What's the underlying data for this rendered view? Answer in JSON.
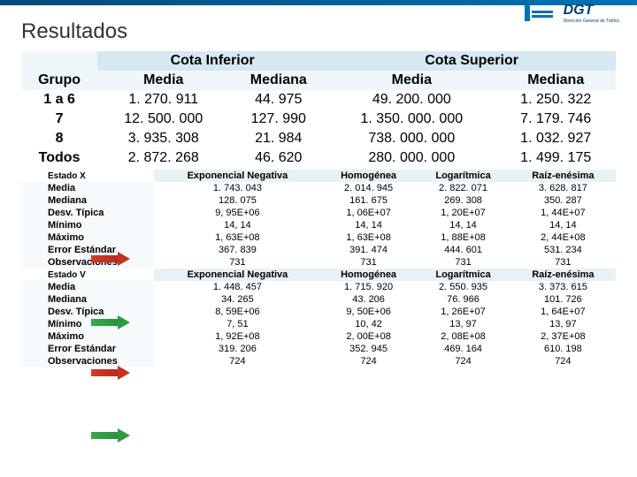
{
  "title": "Resultados",
  "logo_text": "DGT",
  "logo_sub": "Dirección General de Tráfico",
  "colors": {
    "topbar_from": "#014a7a",
    "topbar_to": "#0073b6",
    "hdr_bg": "#d6e9f2",
    "sub_bg": "#f0f7fb",
    "dist_hdr_bg": "#e8f1f6",
    "row_label_bg": "#f6fafc",
    "arrow_red": "#c33327",
    "arrow_green": "#2f9a40"
  },
  "tbl1": {
    "top1": "Cota Inferior",
    "top2": "Cota Superior",
    "h0": "Grupo",
    "h1": "Media",
    "h2": "Mediana",
    "h3": "Media",
    "h4": "Mediana",
    "rows": [
      {
        "g": "1 a 6",
        "a": "1. 270. 911",
        "b": "44. 975",
        "c": "49. 200. 000",
        "d": "1. 250. 322"
      },
      {
        "g": "7",
        "a": "12. 500. 000",
        "b": "127. 990",
        "c": "1. 350. 000. 000",
        "d": "7. 179. 746"
      },
      {
        "g": "8",
        "a": "3. 935. 308",
        "b": "21. 984",
        "c": "738. 000. 000",
        "d": "1. 032. 927"
      },
      {
        "g": "Todos",
        "a": "2. 872. 268",
        "b": "46. 620",
        "c": "280. 000. 000",
        "d": "1. 499. 175"
      }
    ]
  },
  "tbl2": {
    "state_x": "Estado X",
    "state_v": "Estado V",
    "d1": "Exponencial Negativa",
    "d2": "Homogénea",
    "d3": "Logarítmica",
    "d4": "Raíz-enésima",
    "labels": [
      "Media",
      "Mediana",
      "Desv. Típica",
      "Mínimo",
      "Máximo",
      "Error Estándar",
      "Observaciones"
    ],
    "block_x": [
      [
        "1. 743. 043",
        "2. 014. 945",
        "2. 822. 071",
        "3. 628. 817"
      ],
      [
        "128. 075",
        "161. 675",
        "269. 308",
        "350. 287"
      ],
      [
        "9, 95E+06",
        "1, 06E+07",
        "1, 20E+07",
        "1, 44E+07"
      ],
      [
        "14, 14",
        "14, 14",
        "14, 14",
        "14, 14"
      ],
      [
        "1, 63E+08",
        "1, 63E+08",
        "1, 88E+08",
        "2, 44E+08"
      ],
      [
        "367. 839",
        "391. 474",
        "444. 601",
        "531. 234"
      ],
      [
        "731",
        "731",
        "731",
        "731"
      ]
    ],
    "block_v": [
      [
        "1. 448. 457",
        "1. 715. 920",
        "2. 550. 935",
        "3. 373. 615"
      ],
      [
        "34. 265",
        "43. 206",
        "76. 966",
        "101. 726"
      ],
      [
        "8, 59E+06",
        "9, 50E+06",
        "1, 26E+07",
        "1, 64E+07"
      ],
      [
        "7, 51",
        "10, 42",
        "13, 97",
        "13, 97"
      ],
      [
        "1, 92E+08",
        "2, 00E+08",
        "2, 08E+08",
        "2, 37E+08"
      ],
      [
        "319. 206",
        "352. 945",
        "469. 164",
        "610. 198"
      ],
      [
        "724",
        "724",
        "724",
        "724"
      ]
    ]
  }
}
